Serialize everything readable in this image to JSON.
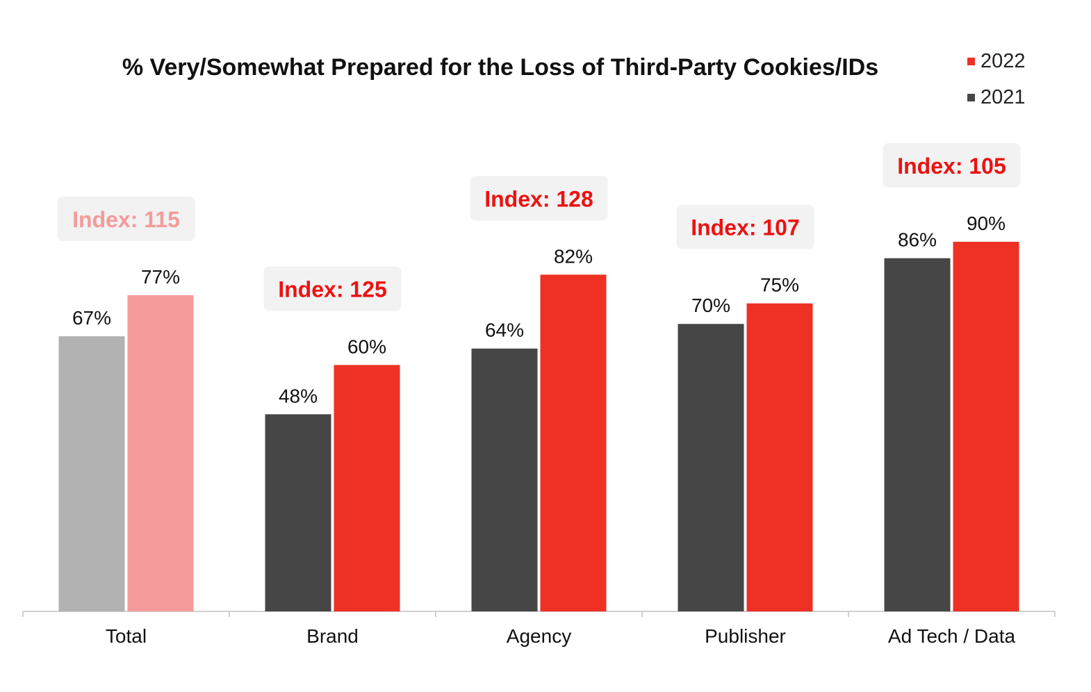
{
  "chart_data": {
    "type": "bar",
    "title": "% Very/Somewhat Prepared for the Loss of Third-Party Cookies/IDs",
    "categories": [
      "Total",
      "Brand",
      "Agency",
      "Publisher",
      "Ad Tech / Data"
    ],
    "series": [
      {
        "name": "2021",
        "values": [
          67,
          48,
          64,
          70,
          86
        ],
        "labels": [
          "67%",
          "48%",
          "64%",
          "70%",
          "86%"
        ],
        "color": "#464646"
      },
      {
        "name": "2022",
        "values": [
          77,
          60,
          82,
          75,
          90
        ],
        "labels": [
          "77%",
          "60%",
          "82%",
          "75%",
          "90%"
        ],
        "color": "#ee3124"
      }
    ],
    "highlight_colors": {
      "2021": "#b2b2b2",
      "2022": "#f59a9a",
      "index_text": "#f59a9a"
    },
    "index_annotations": [
      "Index: 115",
      "Index: 125",
      "Index: 128",
      "Index: 107",
      "Index: 105"
    ],
    "index_text_color": "#ee1111",
    "ylim": [
      0,
      100
    ],
    "grid": false,
    "legend_position": "top-right",
    "legend": [
      {
        "label": "2022",
        "color": "#ee3124"
      },
      {
        "label": "2021",
        "color": "#464646"
      }
    ]
  }
}
